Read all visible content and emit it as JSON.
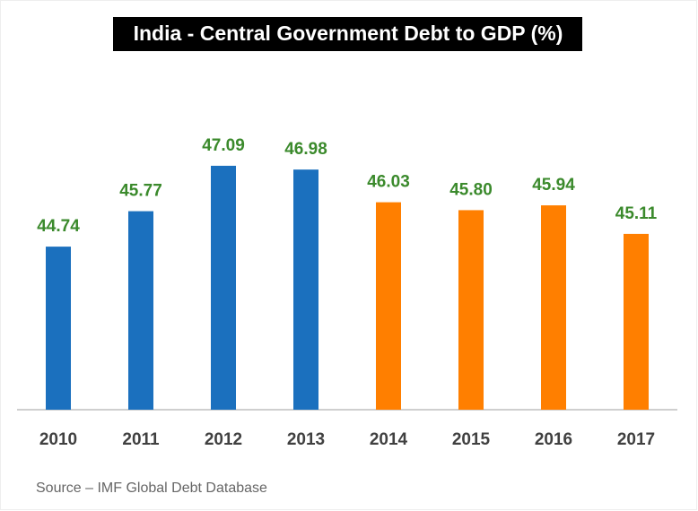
{
  "chart_data": {
    "type": "bar",
    "title": "India - Central Government Debt to GDP (%)",
    "categories": [
      "2010",
      "2011",
      "2012",
      "2013",
      "2014",
      "2015",
      "2016",
      "2017"
    ],
    "values": [
      44.74,
      45.77,
      47.09,
      46.98,
      46.03,
      45.8,
      45.94,
      45.11
    ],
    "value_labels": [
      "44.74",
      "45.77",
      "47.09",
      "46.98",
      "46.03",
      "45.80",
      "45.94",
      "45.11"
    ],
    "colors": [
      "#1b70be",
      "#1b70be",
      "#1b70be",
      "#1b70be",
      "#ff7f00",
      "#ff7f00",
      "#ff7f00",
      "#ff7f00"
    ],
    "label_color": "#3b8a2c",
    "ylim": [
      40,
      48
    ],
    "source": "Source – IMF Global Debt Database"
  }
}
